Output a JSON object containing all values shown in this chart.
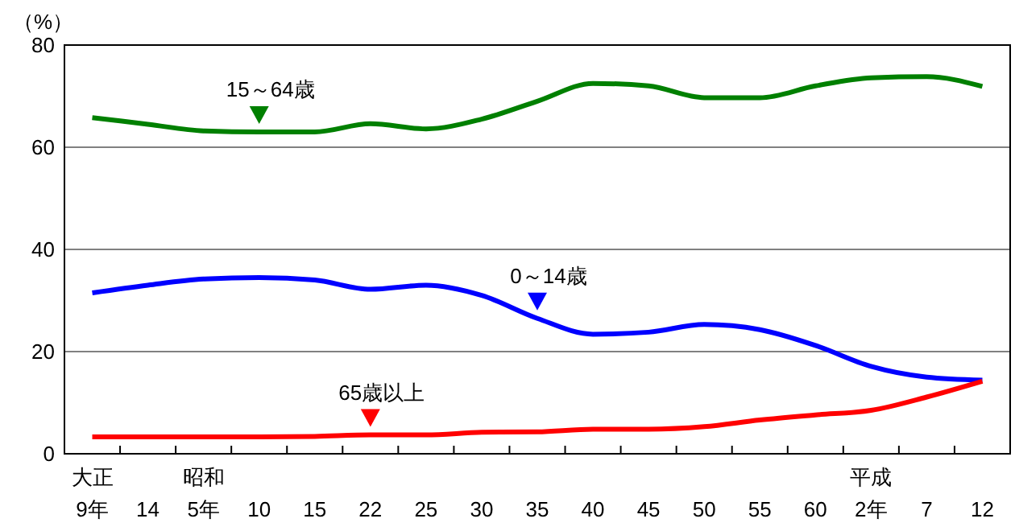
{
  "chart_data": {
    "type": "line",
    "ylabel": "（%）",
    "categories": [
      "大正\n9年",
      "14",
      "昭和\n5年",
      "10",
      "15",
      "22",
      "25",
      "30",
      "35",
      "40",
      "45",
      "50",
      "55",
      "60",
      "平成\n2年",
      "7",
      "12"
    ],
    "series": [
      {
        "color": "#008000",
        "values": [
          65.8,
          64.5,
          63.2,
          63,
          63,
          64.6,
          63.6,
          65.5,
          69,
          72.5,
          72,
          69.7,
          69.7,
          72,
          73.6,
          73.8,
          71.9
        ]
      },
      {
        "color": "#0000ff",
        "values": [
          31.5,
          33,
          34.2,
          34.5,
          34,
          32.2,
          33,
          31,
          26.5,
          23.4,
          23.8,
          25.3,
          24.3,
          21.2,
          17.1,
          15,
          14.4
        ]
      },
      {
        "color": "#ff0000",
        "values": [
          3.3,
          3.3,
          3.3,
          3.3,
          3.4,
          3.7,
          3.7,
          4.2,
          4.3,
          4.8,
          4.8,
          5.3,
          6.6,
          7.6,
          8.5,
          11.1,
          14.2
        ]
      }
    ],
    "annotations": [
      {
        "text": "15～64歳",
        "x": "10",
        "y": 63
      },
      {
        "text": "0～14歳",
        "x": "35",
        "y": 26.5
      },
      {
        "text": "65歳以上",
        "x": "22",
        "y": 3.7
      }
    ],
    "ylim": [
      0,
      80
    ],
    "yticks": [
      0,
      20,
      40,
      60,
      80
    ],
    "grid": "y",
    "marker": "none",
    "line_style": "solid"
  }
}
